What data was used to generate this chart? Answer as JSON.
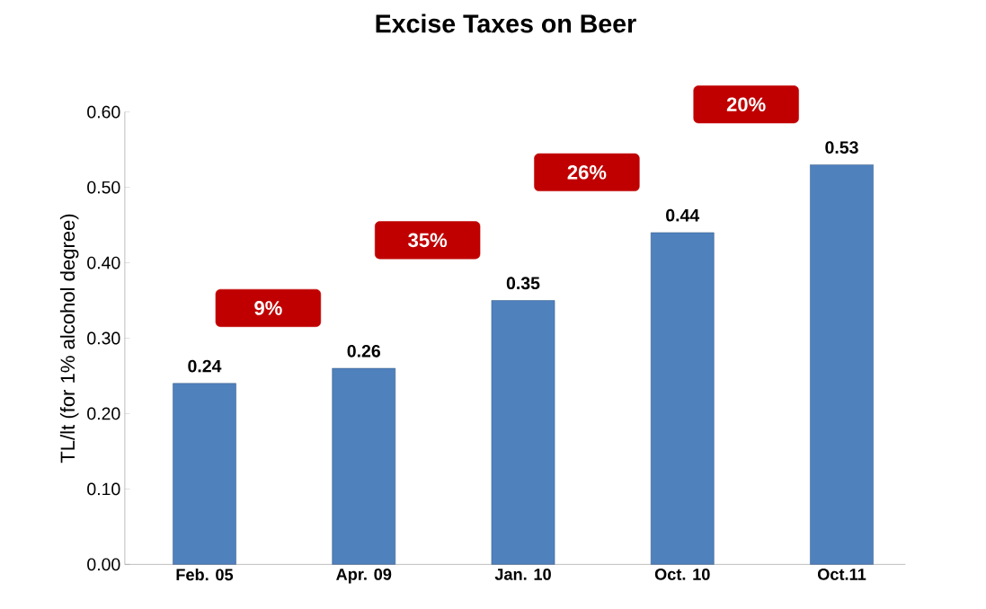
{
  "chart_data": {
    "type": "bar",
    "title": "Excise Taxes on Beer",
    "ylabel": "TL/lt  (for 1% alcohol degree)",
    "categories": [
      "Feb. 05",
      "Apr. 09",
      "Jan. 10",
      "Oct. 10",
      "Oct.11"
    ],
    "values": [
      0.24,
      0.26,
      0.35,
      0.44,
      0.53
    ],
    "color": "#4f81bd",
    "ylim": [
      0,
      0.6
    ],
    "yticks": [
      {
        "value": 0,
        "label": "0.00"
      },
      {
        "value": 0.1,
        "label": "0.10"
      },
      {
        "value": 0.2,
        "label": "0.20"
      },
      {
        "value": 0.3,
        "label": "0.30"
      },
      {
        "value": 0.4,
        "label": "0.40"
      },
      {
        "value": 0.5,
        "label": "0.50"
      },
      {
        "value": 0.6,
        "label": "0.60"
      }
    ],
    "data_labels": true,
    "annotations": [
      "9%",
      "35%",
      "26%",
      "20%"
    ]
  }
}
